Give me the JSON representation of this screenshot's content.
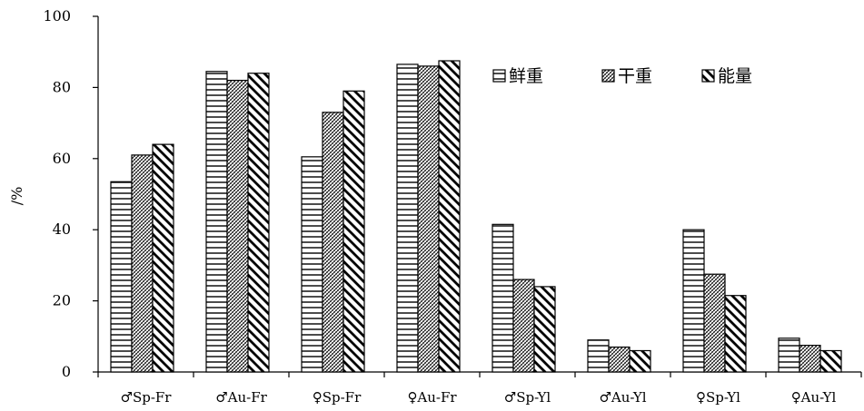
{
  "chart_data": {
    "type": "bar",
    "ylabel": "/%",
    "ylim": [
      0,
      100
    ],
    "yticks": [
      0,
      20,
      40,
      60,
      80,
      100
    ],
    "categories": [
      "♂Sp-Fr",
      "♂Au-Fr",
      "♀Sp-Fr",
      "♀Au-Fr",
      "♂Sp-Yl",
      "♂Au-Yl",
      "♀Sp-Yl",
      "♀Au-Yl"
    ],
    "series": [
      {
        "name": "鲜重",
        "pattern": "horizontal-lines",
        "values": [
          53.5,
          84.5,
          60.5,
          86.5,
          41.5,
          9,
          40,
          9.5
        ]
      },
      {
        "name": "干重",
        "pattern": "fine-crosshatch",
        "values": [
          61,
          82,
          73,
          86,
          26,
          7,
          27.5,
          7.5
        ]
      },
      {
        "name": "能量",
        "pattern": "diagonal-stripes",
        "values": [
          64,
          84,
          79,
          87.5,
          24,
          6,
          21.5,
          6
        ]
      }
    ],
    "legend_position": "top-right",
    "grid": false
  }
}
